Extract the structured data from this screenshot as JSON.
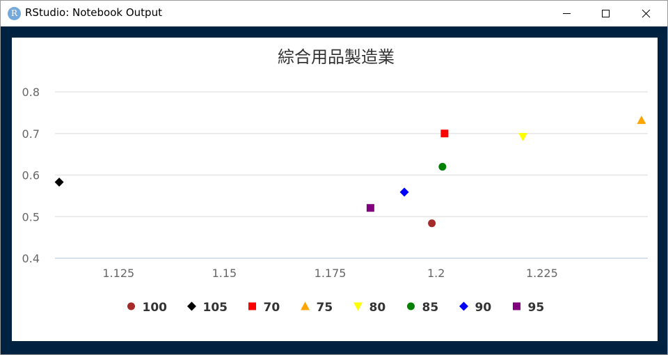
{
  "window": {
    "title": "RStudio: Notebook Output",
    "app_icon_letter": "R",
    "controls": [
      "minimize-icon",
      "maximize-icon",
      "close-icon"
    ]
  },
  "colors": {
    "frame": "#002241",
    "grid": "#e6e6e6",
    "axis": "#ccd6eb",
    "tick_text": "#666666",
    "title_text": "#333333"
  },
  "chart_data": {
    "type": "scatter",
    "title": "綜合用品製造業",
    "xlabel": "",
    "ylabel": "",
    "xlim": [
      1.11,
      1.25
    ],
    "ylim": [
      0.4,
      0.8
    ],
    "x_ticks": [
      1.125,
      1.15,
      1.175,
      1.2,
      1.225
    ],
    "x_tick_labels": [
      "1.125",
      "1.15",
      "1.175",
      "1.2",
      "1.225"
    ],
    "y_ticks": [
      0.4,
      0.5,
      0.6,
      0.7,
      0.8
    ],
    "y_tick_labels": [
      "0.4",
      "0.5",
      "0.6",
      "0.7",
      "0.8"
    ],
    "grid": "horizontal",
    "legend_position": "bottom",
    "series": [
      {
        "name": "100",
        "marker": "circle",
        "color": "#a52a2a",
        "points": [
          [
            1.199,
            0.484
          ]
        ]
      },
      {
        "name": "105",
        "marker": "diamond",
        "color": "#000000",
        "points": [
          [
            1.111,
            0.583
          ]
        ]
      },
      {
        "name": "70",
        "marker": "square",
        "color": "#ff0000",
        "points": [
          [
            1.202,
            0.7
          ]
        ]
      },
      {
        "name": "75",
        "marker": "triangle",
        "color": "#ffa500",
        "points": [
          [
            1.2485,
            0.732
          ]
        ]
      },
      {
        "name": "80",
        "marker": "triangle-down",
        "color": "#ffff00",
        "points": [
          [
            1.2205,
            0.692
          ]
        ]
      },
      {
        "name": "85",
        "marker": "circle",
        "color": "#008000",
        "points": [
          [
            1.2015,
            0.62
          ]
        ]
      },
      {
        "name": "90",
        "marker": "diamond",
        "color": "#0000ff",
        "points": [
          [
            1.1925,
            0.559
          ]
        ]
      },
      {
        "name": "95",
        "marker": "square",
        "color": "#800080",
        "points": [
          [
            1.1845,
            0.521
          ]
        ]
      }
    ]
  }
}
